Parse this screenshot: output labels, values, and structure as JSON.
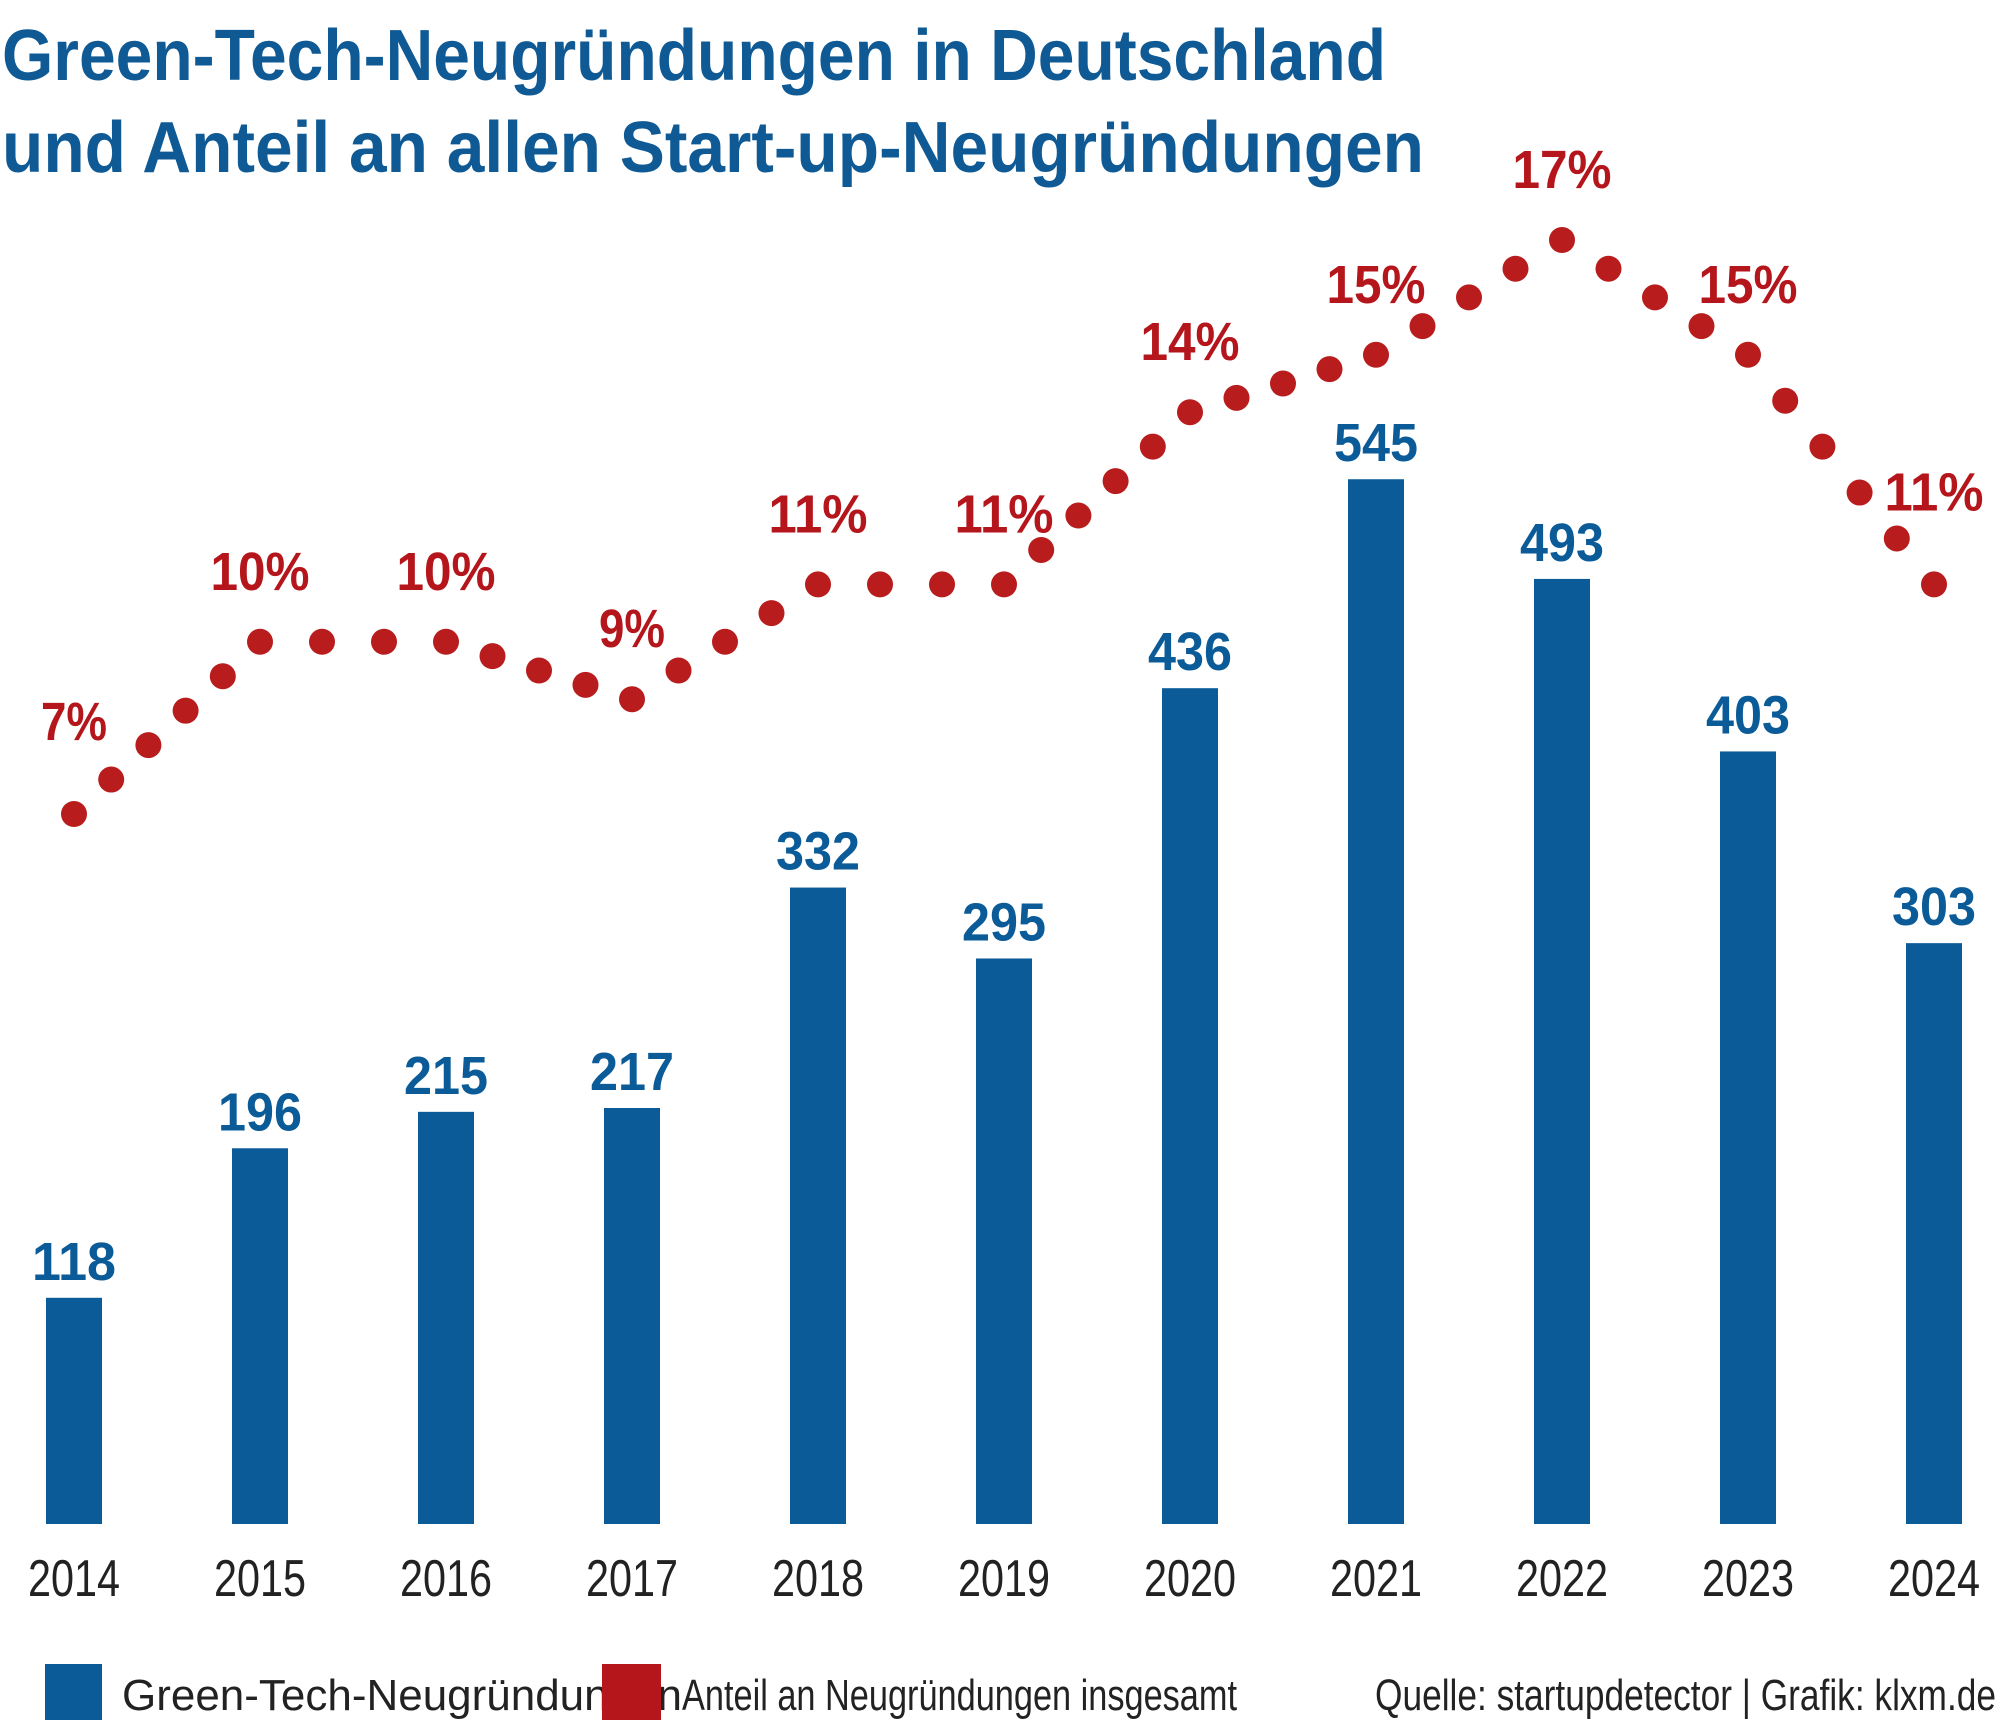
{
  "chart_data": {
    "type": "bar",
    "title": [
      "Green-Tech-Neugründungen in Deutschland",
      "und Anteil an allen Start-up-Neugründungen"
    ],
    "categories": [
      "2014",
      "2015",
      "2016",
      "2017",
      "2018",
      "2019",
      "2020",
      "2021",
      "2022",
      "2023",
      "2024"
    ],
    "series": [
      {
        "name": "Green-Tech-Neugründungen",
        "type": "bar",
        "color": "#0a5b98",
        "values": [
          118,
          196,
          215,
          217,
          332,
          295,
          436,
          545,
          493,
          403,
          303
        ]
      },
      {
        "name": "Anteil an Neugründungen insgesamt",
        "type": "line",
        "style": "dotted",
        "color": "#b81c1c",
        "unit": "%",
        "values": [
          7,
          10,
          10,
          9,
          11,
          11,
          14,
          15,
          17,
          15,
          11
        ],
        "labels": [
          "7%",
          "10%",
          "10%",
          "9%",
          "11%",
          "11%",
          "14%",
          "15%",
          "17%",
          "15%",
          "11%"
        ]
      }
    ],
    "xlabel": "",
    "ylabel": "",
    "grid": false,
    "legend": "bottom-left",
    "source": "Quelle: startupdetector | Grafik: klxm.de"
  }
}
